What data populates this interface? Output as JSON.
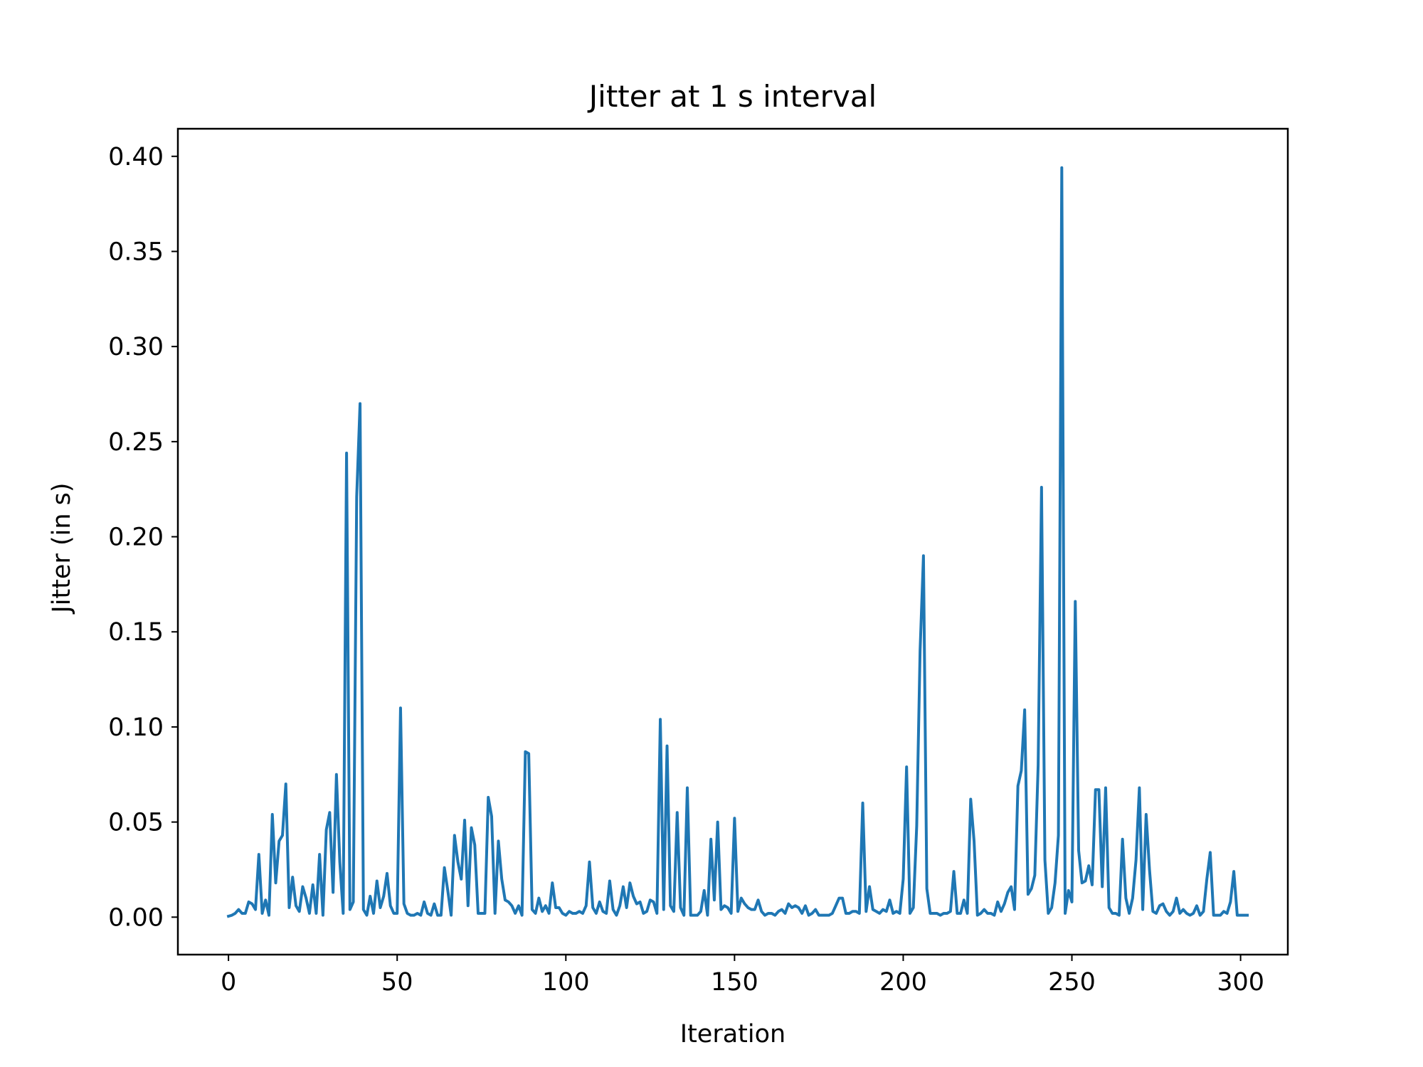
{
  "chart_data": {
    "type": "line",
    "title": "Jitter at 1 s interval",
    "xlabel": "Iteration",
    "ylabel": "Jitter (in s)",
    "xlim": [
      -15,
      314
    ],
    "ylim": [
      -0.0197,
      0.4145
    ],
    "xticks": [
      0,
      50,
      100,
      150,
      200,
      250,
      300
    ],
    "xtick_labels": [
      "0",
      "50",
      "100",
      "150",
      "200",
      "250",
      "300"
    ],
    "yticks": [
      0.0,
      0.05,
      0.1,
      0.15,
      0.2,
      0.25,
      0.3,
      0.35,
      0.4
    ],
    "ytick_labels": [
      "0.00",
      "0.05",
      "0.10",
      "0.15",
      "0.20",
      "0.25",
      "0.30",
      "0.35",
      "0.40"
    ],
    "grid": false,
    "series": [
      {
        "color": "#1f77b4",
        "y": [
          0.0005,
          0.001,
          0.002,
          0.004,
          0.002,
          0.002,
          0.008,
          0.007,
          0.004,
          0.033,
          0.002,
          0.009,
          0.001,
          0.054,
          0.018,
          0.04,
          0.043,
          0.07,
          0.005,
          0.021,
          0.006,
          0.003,
          0.016,
          0.01,
          0.002,
          0.017,
          0.002,
          0.033,
          0.001,
          0.046,
          0.055,
          0.013,
          0.075,
          0.029,
          0.002,
          0.244,
          0.004,
          0.008,
          0.221,
          0.27,
          0.004,
          0.001,
          0.011,
          0.002,
          0.019,
          0.005,
          0.011,
          0.023,
          0.006,
          0.002,
          0.002,
          0.11,
          0.007,
          0.002,
          0.001,
          0.001,
          0.002,
          0.001,
          0.008,
          0.002,
          0.001,
          0.007,
          0.001,
          0.001,
          0.026,
          0.014,
          0.001,
          0.043,
          0.029,
          0.02,
          0.051,
          0.006,
          0.047,
          0.038,
          0.002,
          0.002,
          0.002,
          0.063,
          0.053,
          0.002,
          0.04,
          0.02,
          0.009,
          0.008,
          0.006,
          0.002,
          0.006,
          0.001,
          0.087,
          0.086,
          0.004,
          0.002,
          0.01,
          0.003,
          0.006,
          0.002,
          0.018,
          0.005,
          0.005,
          0.002,
          0.001,
          0.003,
          0.002,
          0.002,
          0.003,
          0.002,
          0.006,
          0.029,
          0.005,
          0.002,
          0.008,
          0.003,
          0.002,
          0.019,
          0.004,
          0.001,
          0.006,
          0.016,
          0.005,
          0.018,
          0.011,
          0.007,
          0.008,
          0.002,
          0.003,
          0.009,
          0.008,
          0.002,
          0.104,
          0.004,
          0.09,
          0.006,
          0.003,
          0.055,
          0.005,
          0.001,
          0.068,
          0.001,
          0.001,
          0.001,
          0.003,
          0.014,
          0.001,
          0.041,
          0.009,
          0.05,
          0.004,
          0.006,
          0.005,
          0.002,
          0.052,
          0.003,
          0.01,
          0.007,
          0.005,
          0.004,
          0.004,
          0.009,
          0.003,
          0.001,
          0.002,
          0.002,
          0.001,
          0.003,
          0.004,
          0.002,
          0.007,
          0.005,
          0.006,
          0.005,
          0.002,
          0.006,
          0.001,
          0.002,
          0.004,
          0.001,
          0.001,
          0.001,
          0.001,
          0.002,
          0.006,
          0.01,
          0.01,
          0.002,
          0.002,
          0.003,
          0.003,
          0.002,
          0.06,
          0.003,
          0.016,
          0.004,
          0.003,
          0.002,
          0.004,
          0.003,
          0.009,
          0.002,
          0.003,
          0.002,
          0.02,
          0.079,
          0.002,
          0.005,
          0.048,
          0.14,
          0.19,
          0.015,
          0.002,
          0.002,
          0.002,
          0.001,
          0.002,
          0.002,
          0.003,
          0.024,
          0.002,
          0.002,
          0.009,
          0.002,
          0.062,
          0.04,
          0.001,
          0.002,
          0.004,
          0.002,
          0.002,
          0.001,
          0.008,
          0.003,
          0.007,
          0.013,
          0.016,
          0.004,
          0.069,
          0.077,
          0.109,
          0.012,
          0.015,
          0.022,
          0.08,
          0.226,
          0.03,
          0.002,
          0.005,
          0.018,
          0.043,
          0.394,
          0.002,
          0.014,
          0.008,
          0.166,
          0.035,
          0.018,
          0.019,
          0.027,
          0.017,
          0.067,
          0.067,
          0.016,
          0.068,
          0.005,
          0.002,
          0.002,
          0.001,
          0.041,
          0.01,
          0.002,
          0.01,
          0.03,
          0.068,
          0.004,
          0.054,
          0.025,
          0.003,
          0.002,
          0.006,
          0.007,
          0.003,
          0.001,
          0.003,
          0.01,
          0.002,
          0.004,
          0.002,
          0.001,
          0.002,
          0.006,
          0.001,
          0.003,
          0.02,
          0.034,
          0.001,
          0.001,
          0.001,
          0.003,
          0.002,
          0.008,
          0.024,
          0.001,
          0.001,
          0.001,
          0.001
        ]
      }
    ]
  }
}
